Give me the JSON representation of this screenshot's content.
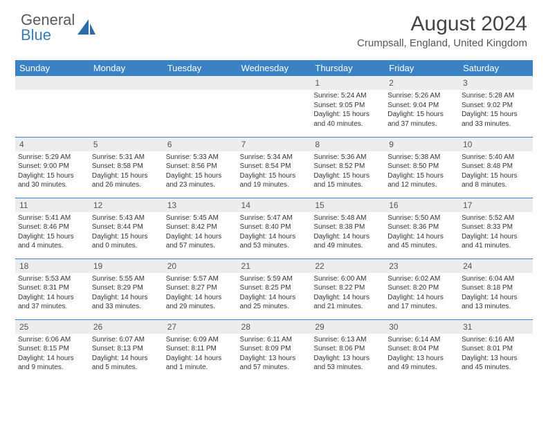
{
  "brand": {
    "line1": "General",
    "line2": "Blue"
  },
  "title": "August 2024",
  "location": "Crumpsall, England, United Kingdom",
  "colors": {
    "header_bg": "#3a82c4",
    "header_text": "#ffffff",
    "daynum_bg": "#eceded",
    "divider": "#3a82c4",
    "logo_accent": "#2e6ca8"
  },
  "day_headers": [
    "Sunday",
    "Monday",
    "Tuesday",
    "Wednesday",
    "Thursday",
    "Friday",
    "Saturday"
  ],
  "weeks": [
    [
      {
        "n": "",
        "sr": "",
        "ss": "",
        "dl": ""
      },
      {
        "n": "",
        "sr": "",
        "ss": "",
        "dl": ""
      },
      {
        "n": "",
        "sr": "",
        "ss": "",
        "dl": ""
      },
      {
        "n": "",
        "sr": "",
        "ss": "",
        "dl": ""
      },
      {
        "n": "1",
        "sr": "Sunrise: 5:24 AM",
        "ss": "Sunset: 9:05 PM",
        "dl": "Daylight: 15 hours and 40 minutes."
      },
      {
        "n": "2",
        "sr": "Sunrise: 5:26 AM",
        "ss": "Sunset: 9:04 PM",
        "dl": "Daylight: 15 hours and 37 minutes."
      },
      {
        "n": "3",
        "sr": "Sunrise: 5:28 AM",
        "ss": "Sunset: 9:02 PM",
        "dl": "Daylight: 15 hours and 33 minutes."
      }
    ],
    [
      {
        "n": "4",
        "sr": "Sunrise: 5:29 AM",
        "ss": "Sunset: 9:00 PM",
        "dl": "Daylight: 15 hours and 30 minutes."
      },
      {
        "n": "5",
        "sr": "Sunrise: 5:31 AM",
        "ss": "Sunset: 8:58 PM",
        "dl": "Daylight: 15 hours and 26 minutes."
      },
      {
        "n": "6",
        "sr": "Sunrise: 5:33 AM",
        "ss": "Sunset: 8:56 PM",
        "dl": "Daylight: 15 hours and 23 minutes."
      },
      {
        "n": "7",
        "sr": "Sunrise: 5:34 AM",
        "ss": "Sunset: 8:54 PM",
        "dl": "Daylight: 15 hours and 19 minutes."
      },
      {
        "n": "8",
        "sr": "Sunrise: 5:36 AM",
        "ss": "Sunset: 8:52 PM",
        "dl": "Daylight: 15 hours and 15 minutes."
      },
      {
        "n": "9",
        "sr": "Sunrise: 5:38 AM",
        "ss": "Sunset: 8:50 PM",
        "dl": "Daylight: 15 hours and 12 minutes."
      },
      {
        "n": "10",
        "sr": "Sunrise: 5:40 AM",
        "ss": "Sunset: 8:48 PM",
        "dl": "Daylight: 15 hours and 8 minutes."
      }
    ],
    [
      {
        "n": "11",
        "sr": "Sunrise: 5:41 AM",
        "ss": "Sunset: 8:46 PM",
        "dl": "Daylight: 15 hours and 4 minutes."
      },
      {
        "n": "12",
        "sr": "Sunrise: 5:43 AM",
        "ss": "Sunset: 8:44 PM",
        "dl": "Daylight: 15 hours and 0 minutes."
      },
      {
        "n": "13",
        "sr": "Sunrise: 5:45 AM",
        "ss": "Sunset: 8:42 PM",
        "dl": "Daylight: 14 hours and 57 minutes."
      },
      {
        "n": "14",
        "sr": "Sunrise: 5:47 AM",
        "ss": "Sunset: 8:40 PM",
        "dl": "Daylight: 14 hours and 53 minutes."
      },
      {
        "n": "15",
        "sr": "Sunrise: 5:48 AM",
        "ss": "Sunset: 8:38 PM",
        "dl": "Daylight: 14 hours and 49 minutes."
      },
      {
        "n": "16",
        "sr": "Sunrise: 5:50 AM",
        "ss": "Sunset: 8:36 PM",
        "dl": "Daylight: 14 hours and 45 minutes."
      },
      {
        "n": "17",
        "sr": "Sunrise: 5:52 AM",
        "ss": "Sunset: 8:33 PM",
        "dl": "Daylight: 14 hours and 41 minutes."
      }
    ],
    [
      {
        "n": "18",
        "sr": "Sunrise: 5:53 AM",
        "ss": "Sunset: 8:31 PM",
        "dl": "Daylight: 14 hours and 37 minutes."
      },
      {
        "n": "19",
        "sr": "Sunrise: 5:55 AM",
        "ss": "Sunset: 8:29 PM",
        "dl": "Daylight: 14 hours and 33 minutes."
      },
      {
        "n": "20",
        "sr": "Sunrise: 5:57 AM",
        "ss": "Sunset: 8:27 PM",
        "dl": "Daylight: 14 hours and 29 minutes."
      },
      {
        "n": "21",
        "sr": "Sunrise: 5:59 AM",
        "ss": "Sunset: 8:25 PM",
        "dl": "Daylight: 14 hours and 25 minutes."
      },
      {
        "n": "22",
        "sr": "Sunrise: 6:00 AM",
        "ss": "Sunset: 8:22 PM",
        "dl": "Daylight: 14 hours and 21 minutes."
      },
      {
        "n": "23",
        "sr": "Sunrise: 6:02 AM",
        "ss": "Sunset: 8:20 PM",
        "dl": "Daylight: 14 hours and 17 minutes."
      },
      {
        "n": "24",
        "sr": "Sunrise: 6:04 AM",
        "ss": "Sunset: 8:18 PM",
        "dl": "Daylight: 14 hours and 13 minutes."
      }
    ],
    [
      {
        "n": "25",
        "sr": "Sunrise: 6:06 AM",
        "ss": "Sunset: 8:15 PM",
        "dl": "Daylight: 14 hours and 9 minutes."
      },
      {
        "n": "26",
        "sr": "Sunrise: 6:07 AM",
        "ss": "Sunset: 8:13 PM",
        "dl": "Daylight: 14 hours and 5 minutes."
      },
      {
        "n": "27",
        "sr": "Sunrise: 6:09 AM",
        "ss": "Sunset: 8:11 PM",
        "dl": "Daylight: 14 hours and 1 minute."
      },
      {
        "n": "28",
        "sr": "Sunrise: 6:11 AM",
        "ss": "Sunset: 8:09 PM",
        "dl": "Daylight: 13 hours and 57 minutes."
      },
      {
        "n": "29",
        "sr": "Sunrise: 6:13 AM",
        "ss": "Sunset: 8:06 PM",
        "dl": "Daylight: 13 hours and 53 minutes."
      },
      {
        "n": "30",
        "sr": "Sunrise: 6:14 AM",
        "ss": "Sunset: 8:04 PM",
        "dl": "Daylight: 13 hours and 49 minutes."
      },
      {
        "n": "31",
        "sr": "Sunrise: 6:16 AM",
        "ss": "Sunset: 8:01 PM",
        "dl": "Daylight: 13 hours and 45 minutes."
      }
    ]
  ]
}
